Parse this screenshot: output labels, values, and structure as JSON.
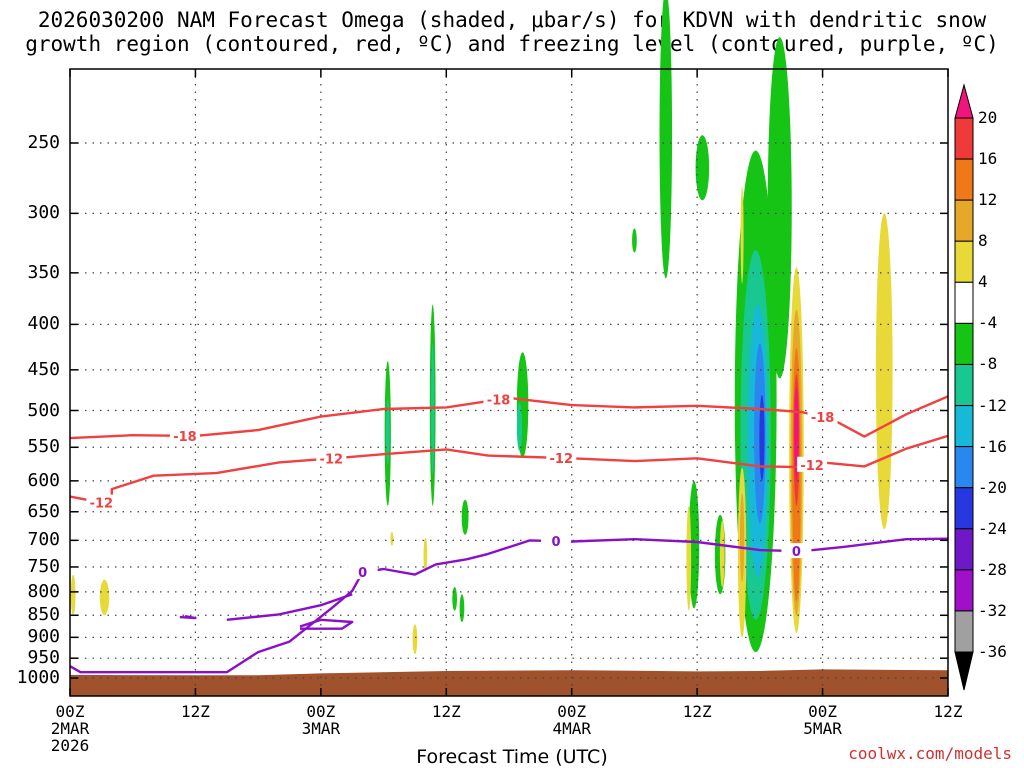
{
  "chart_data": {
    "type": "time-height cross-section",
    "title_line1": "2026030200 NAM Forecast Omega (shaded, μbar/s) for KDVN with dendritic snow",
    "title_line2": "growth region (contoured, red, ºC) and freezing level (contoured, purple, ºC)",
    "xlabel": "Forecast Time (UTC)",
    "ylabel": "",
    "x_unit": "hours",
    "xlim": [
      0,
      84
    ],
    "y_unit": "hPa",
    "ylim": [
      1025,
      200
    ],
    "y_ticks": [
      250,
      300,
      350,
      400,
      450,
      500,
      550,
      600,
      650,
      700,
      750,
      800,
      850,
      900,
      950,
      1000
    ],
    "x_ticks": [
      {
        "h": 0,
        "lines": [
          "00Z",
          "2MAR",
          "2026"
        ]
      },
      {
        "h": 12,
        "lines": [
          "12Z"
        ]
      },
      {
        "h": 24,
        "lines": [
          "00Z",
          "3MAR"
        ]
      },
      {
        "h": 36,
        "lines": [
          "12Z"
        ]
      },
      {
        "h": 48,
        "lines": [
          "00Z",
          "4MAR"
        ]
      },
      {
        "h": 60,
        "lines": [
          "12Z"
        ]
      },
      {
        "h": 72,
        "lines": [
          "00Z",
          "5MAR"
        ]
      },
      {
        "h": 84,
        "lines": [
          "12Z"
        ]
      }
    ],
    "colorbar": {
      "labels": [
        "20",
        "16",
        "12",
        "8",
        "4",
        "-4",
        "-8",
        "-12",
        "-16",
        "-20",
        "-24",
        "-28",
        "-32",
        "-36"
      ],
      "colors": [
        "#f0147c",
        "#f03a3a",
        "#f07818",
        "#e6a828",
        "#e8d838",
        "#ffffff",
        "#16c416",
        "#18c890",
        "#18b8d8",
        "#2888f0",
        "#2838e0",
        "#6e18c8",
        "#a010c8",
        "#a0a0a0",
        "#000000"
      ]
    },
    "contours": [
      {
        "name": "-18",
        "color": "#f04040",
        "label_at_h": [
          11,
          41,
          72
        ],
        "points": [
          [
            0,
            537
          ],
          [
            6,
            533
          ],
          [
            12,
            534
          ],
          [
            18,
            526
          ],
          [
            24,
            508
          ],
          [
            30,
            498
          ],
          [
            36,
            496
          ],
          [
            42,
            484
          ],
          [
            48,
            493
          ],
          [
            54,
            496
          ],
          [
            60,
            494
          ],
          [
            66,
            498
          ],
          [
            70,
            502
          ],
          [
            73,
            512
          ],
          [
            76,
            535
          ],
          [
            80,
            505
          ],
          [
            84,
            482
          ]
        ]
      },
      {
        "name": "-12",
        "color": "#f04040",
        "label_at_h": [
          3,
          25,
          47,
          71
        ],
        "points": [
          [
            0,
            625
          ],
          [
            4,
            638
          ],
          [
            4,
            613
          ],
          [
            8,
            592
          ],
          [
            14,
            588
          ],
          [
            20,
            572
          ],
          [
            26,
            565
          ],
          [
            30,
            560
          ],
          [
            36,
            553
          ],
          [
            40,
            562
          ],
          [
            48,
            566
          ],
          [
            54,
            570
          ],
          [
            60,
            566
          ],
          [
            66,
            578
          ],
          [
            70,
            579
          ],
          [
            72,
            572
          ],
          [
            76,
            578
          ],
          [
            80,
            552
          ],
          [
            84,
            534
          ]
        ]
      },
      {
        "name": "0",
        "color": "#8a10c8",
        "label_at_h": [
          28,
          46.5,
          69.5
        ],
        "points": [
          [
            0,
            970
          ],
          [
            1,
            985
          ],
          [
            15,
            985
          ],
          [
            18,
            935
          ],
          [
            21,
            910
          ],
          [
            25,
            835
          ],
          [
            27,
            798
          ],
          [
            28,
            760
          ],
          [
            30,
            754
          ],
          [
            33,
            765
          ],
          [
            35,
            745
          ],
          [
            38,
            735
          ],
          [
            40,
            725
          ],
          [
            44,
            700
          ],
          [
            48,
            702
          ],
          [
            54,
            698
          ],
          [
            60,
            703
          ],
          [
            66,
            718
          ],
          [
            70,
            720
          ],
          [
            74,
            712
          ],
          [
            80,
            698
          ],
          [
            84,
            697
          ]
        ]
      },
      {
        "name": "0-branch",
        "color": "#8a10c8",
        "label_at_h": [],
        "points": [
          [
            15,
            860
          ],
          [
            20,
            848
          ],
          [
            24,
            828
          ],
          [
            27,
            805
          ]
        ]
      },
      {
        "name": "0-loop",
        "color": "#8a10c8",
        "label_at_h": [],
        "points": [
          [
            22,
            875
          ],
          [
            24,
            860
          ],
          [
            27,
            865
          ],
          [
            26,
            880
          ],
          [
            22,
            880
          ]
        ]
      },
      {
        "name": "0-small",
        "color": "#8a10c8",
        "label_at_h": [],
        "points": [
          [
            10.5,
            854
          ],
          [
            12,
            856
          ],
          [
            11,
            852
          ]
        ]
      }
    ],
    "shaded_regions": [
      {
        "h": 57,
        "p": [
          168,
          355
        ],
        "w": 1.2,
        "color": "#16c416"
      },
      {
        "h": 60.5,
        "p": [
          245,
          290
        ],
        "w": 1.3,
        "color": "#16c416"
      },
      {
        "h": 67.9,
        "p": [
          190,
          460
        ],
        "w": 2.3,
        "color": "#16c416"
      },
      {
        "h": 54,
        "p": [
          312,
          332
        ],
        "w": 0.45,
        "color": "#16c416"
      },
      {
        "h": 43.3,
        "p": [
          430,
          565
        ],
        "w": 1.1,
        "color": "#16c416"
      },
      {
        "h": 43.0,
        "p": [
          490,
          555
        ],
        "w": 0.5,
        "color": "#18c890"
      },
      {
        "h": 59.7,
        "p": [
          600,
          835
        ],
        "w": 1.0,
        "color": "#16c416"
      },
      {
        "h": 62.2,
        "p": [
          655,
          805
        ],
        "w": 1.0,
        "color": "#16c416"
      },
      {
        "h": 65.6,
        "p": [
          255,
          935
        ],
        "w": 4.0,
        "color": "#16c416"
      },
      {
        "h": 65.6,
        "p": [
          330,
          860
        ],
        "w": 2.9,
        "color": "#18c890"
      },
      {
        "h": 65.8,
        "p": [
          380,
          770
        ],
        "w": 1.9,
        "color": "#18b8d8"
      },
      {
        "h": 66.0,
        "p": [
          420,
          670
        ],
        "w": 1.1,
        "color": "#2888f0"
      },
      {
        "h": 66.2,
        "p": [
          480,
          600
        ],
        "w": 0.5,
        "color": "#2838e0"
      },
      {
        "h": 64.3,
        "p": [
          580,
          900
        ],
        "w": 0.8,
        "color": "#e8d838"
      },
      {
        "h": 64.3,
        "p": [
          620,
          780
        ],
        "w": 0.4,
        "color": "#e6a828"
      },
      {
        "h": 69.5,
        "p": [
          345,
          890
        ],
        "w": 1.4,
        "color": "#e8d838"
      },
      {
        "h": 69.5,
        "p": [
          385,
          850
        ],
        "w": 1.1,
        "color": "#e6a828"
      },
      {
        "h": 69.5,
        "p": [
          425,
          820
        ],
        "w": 0.8,
        "color": "#f07818"
      },
      {
        "h": 69.5,
        "p": [
          455,
          640
        ],
        "w": 0.55,
        "color": "#f03a3a"
      },
      {
        "h": 69.5,
        "p": [
          470,
          600
        ],
        "w": 0.4,
        "color": "#f0147c"
      },
      {
        "h": 59.2,
        "p": [
          640,
          840
        ],
        "w": 0.45,
        "color": "#e8d838"
      },
      {
        "h": 62.4,
        "p": [
          665,
          790
        ],
        "w": 0.45,
        "color": "#e8d838"
      },
      {
        "h": 77.9,
        "p": [
          300,
          680
        ],
        "w": 1.6,
        "color": "#e8d838"
      },
      {
        "h": 30.4,
        "p": [
          440,
          640
        ],
        "w": 0.6,
        "color": "#16c416"
      },
      {
        "h": 30.4,
        "p": [
          485,
          575
        ],
        "w": 0.35,
        "color": "#18c890"
      },
      {
        "h": 34.7,
        "p": [
          380,
          640
        ],
        "w": 0.55,
        "color": "#16c416"
      },
      {
        "h": 34.7,
        "p": [
          420,
          590
        ],
        "w": 0.3,
        "color": "#18c890"
      },
      {
        "h": 37.8,
        "p": [
          630,
          690
        ],
        "w": 0.65,
        "color": "#16c416"
      },
      {
        "h": 37.5,
        "p": [
          805,
          865
        ],
        "w": 0.45,
        "color": "#16c416"
      },
      {
        "h": 36.8,
        "p": [
          790,
          840
        ],
        "w": 0.45,
        "color": "#16c416"
      },
      {
        "h": 0.3,
        "p": [
          765,
          850
        ],
        "w": 0.45,
        "color": "#e8d838"
      },
      {
        "h": 3.3,
        "p": [
          775,
          850
        ],
        "w": 0.9,
        "color": "#e8d838"
      },
      {
        "h": 34.0,
        "p": [
          695,
          760
        ],
        "w": 0.35,
        "color": "#e8d838"
      },
      {
        "h": 30.8,
        "p": [
          685,
          710
        ],
        "w": 0.2,
        "color": "#e8d838"
      },
      {
        "h": 33.0,
        "p": [
          870,
          940
        ],
        "w": 0.45,
        "color": "#e8d838"
      },
      {
        "h": 64.3,
        "p": [
          280,
          360
        ],
        "w": 0.25,
        "color": "#e8d838"
      }
    ],
    "terrain": {
      "color": "#a0522d",
      "points": [
        [
          0,
          992
        ],
        [
          12,
          993
        ],
        [
          18,
          993
        ],
        [
          24,
          988
        ],
        [
          36,
          982
        ],
        [
          48,
          980
        ],
        [
          60,
          983
        ],
        [
          66,
          982
        ],
        [
          72,
          978
        ],
        [
          84,
          980
        ]
      ]
    }
  },
  "credit": "coolwx.com/models"
}
